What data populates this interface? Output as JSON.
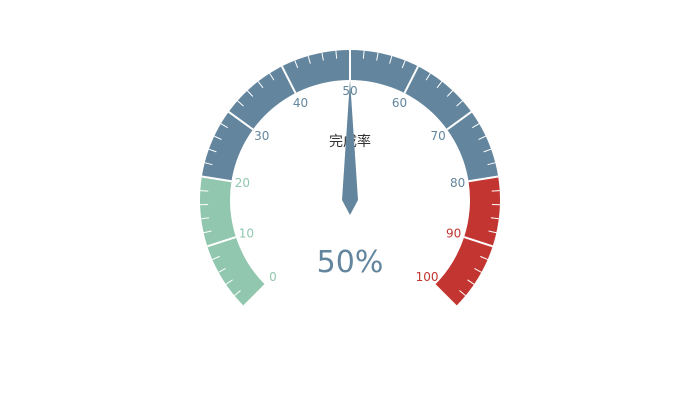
{
  "chart_data": {
    "type": "gauge",
    "title": "完成率",
    "value": 50,
    "detail": "50%",
    "min": 0,
    "max": 100,
    "split_number": 10,
    "tick_labels": [
      "0",
      "10",
      "20",
      "30",
      "40",
      "50",
      "60",
      "70",
      "80",
      "90",
      "100"
    ],
    "color_bands": [
      {
        "to": 0.2,
        "color": "#91c7ae"
      },
      {
        "to": 0.8,
        "color": "#63869e"
      },
      {
        "to": 1.0,
        "color": "#c23531"
      }
    ],
    "pointer_color": "#63869e",
    "title_color": "#333333",
    "detail_color": "#63869e"
  }
}
